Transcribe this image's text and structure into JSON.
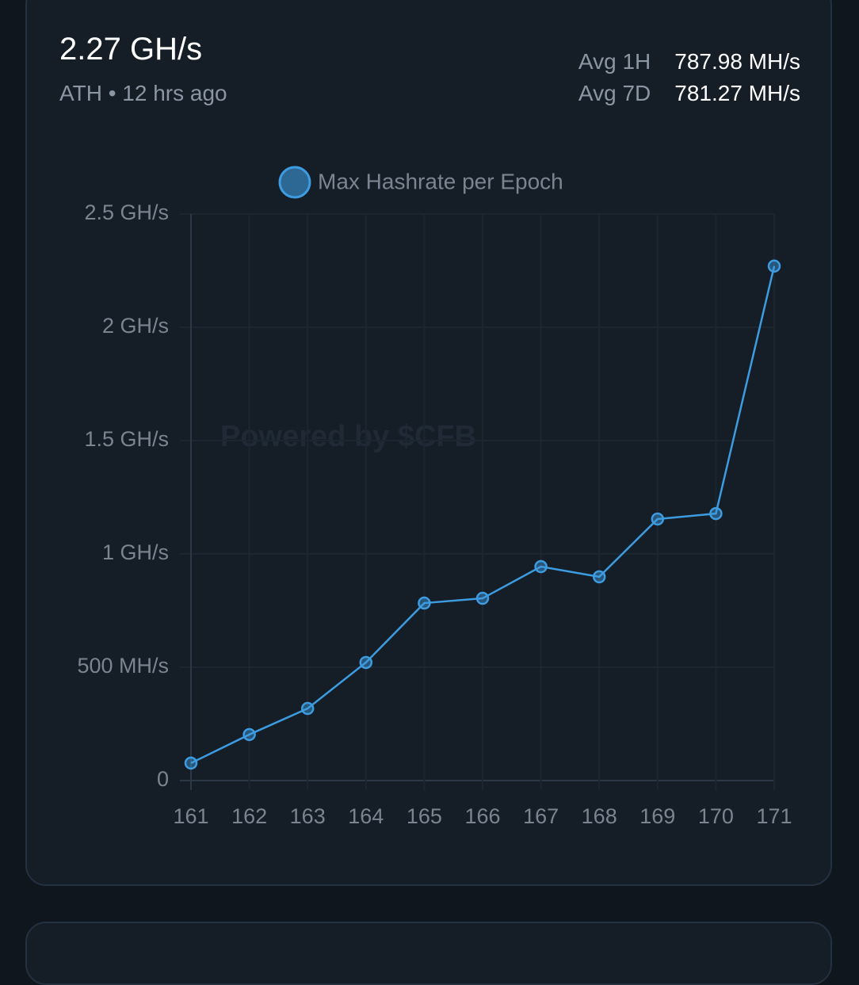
{
  "header": {
    "value": "2.27 GH/s",
    "ath_label": "ATH",
    "separator": "•",
    "ath_time": "12 hrs ago",
    "averages": [
      {
        "label": "Avg 1H",
        "value": "787.98 MH/s"
      },
      {
        "label": "Avg 7D",
        "value": "781.27 MH/s"
      }
    ]
  },
  "chart_data": {
    "type": "line",
    "watermark": "Powered by $CFB",
    "categories": [
      "161",
      "162",
      "163",
      "164",
      "165",
      "166",
      "167",
      "168",
      "169",
      "170",
      "171"
    ],
    "series": [
      {
        "name": "Max Hashrate per Epoch",
        "color": "#3d9be0",
        "values": [
          77,
          203,
          318,
          521,
          783,
          804,
          944,
          899,
          1154,
          1178,
          2270
        ]
      }
    ],
    "ylim": [
      0,
      2500
    ],
    "yticks": [
      0,
      {
        "value": 500,
        "label": "500 MH/s"
      },
      {
        "value": 1000,
        "label": "1 GH/s"
      },
      {
        "value": 1500,
        "label": "1.5 GH/s"
      },
      {
        "value": 2000,
        "label": "2 GH/s"
      },
      {
        "value": 2500,
        "label": "2.5 GH/s"
      }
    ],
    "grid": true,
    "legend": "top"
  }
}
